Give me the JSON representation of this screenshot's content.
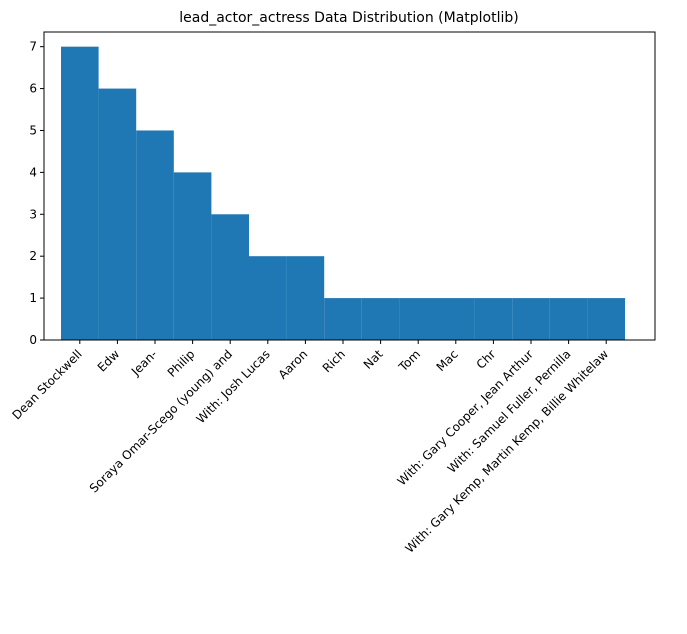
{
  "chart_data": {
    "type": "bar",
    "title": "lead_actor_actress Data Distribution (Matplotlib)",
    "categories": [
      "Dean Stockwell",
      "Edw",
      "Jean-",
      "Philip",
      "Soraya Omar-Scego (young) and",
      "With: Josh Lucas",
      "Aaron",
      "Rich",
      "Nat",
      "Tom",
      "Mac",
      "Chr",
      "With: Gary Cooper, Jean Arthur",
      "With: Samuel Fuller, Pernilla",
      "With: Gary Kemp, Martin Kemp, Billie Whitelaw"
    ],
    "values": [
      7,
      6,
      5,
      4,
      3,
      2,
      2,
      1,
      1,
      1,
      1,
      1,
      1,
      1,
      1
    ],
    "color": "#1f77b4",
    "ylim": [
      0,
      7.35
    ],
    "yticks": [
      0,
      1,
      2,
      3,
      4,
      5,
      6,
      7
    ],
    "grid": false
  }
}
